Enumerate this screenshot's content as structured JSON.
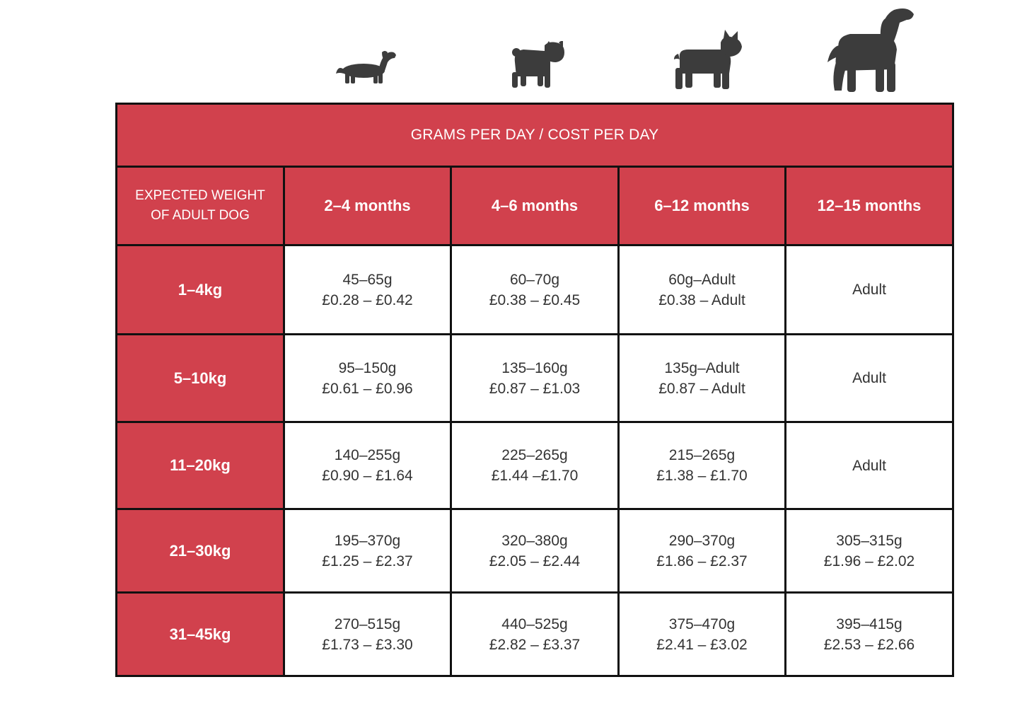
{
  "table_title": "GRAMS PER DAY / COST PER DAY",
  "weight_header": [
    "EXPECTED WEIGHT",
    "OF ADULT DOG"
  ],
  "age_columns": [
    "2–4 months",
    "4–6 months",
    "6–12 months",
    "12–15 months"
  ],
  "rows": [
    {
      "weight": "1–4kg",
      "cells": [
        [
          "45–65g",
          "£0.28 – £0.42"
        ],
        [
          "60–70g",
          "£0.38 – £0.45"
        ],
        [
          "60g–Adult",
          "£0.38 – Adult"
        ],
        [
          "Adult"
        ]
      ]
    },
    {
      "weight": "5–10kg",
      "cells": [
        [
          "95–150g",
          "£0.61 – £0.96"
        ],
        [
          "135–160g",
          "£0.87 – £1.03"
        ],
        [
          "135g–Adult",
          "£0.87 – Adult"
        ],
        [
          "Adult"
        ]
      ]
    },
    {
      "weight": "11–20kg",
      "cells": [
        [
          "140–255g",
          "£0.90 – £1.64"
        ],
        [
          "225–265g",
          "£1.44 –£1.70"
        ],
        [
          "215–265g",
          "£1.38 – £1.70"
        ],
        [
          "Adult"
        ]
      ]
    },
    {
      "weight": "21–30kg",
      "cells": [
        [
          "195–370g",
          "£1.25 – £2.37"
        ],
        [
          "320–380g",
          "£2.05 – £2.44"
        ],
        [
          "290–370g",
          "£1.86 – £2.37"
        ],
        [
          "305–315g",
          "£1.96 – £2.02"
        ]
      ]
    },
    {
      "weight": "31–45kg",
      "cells": [
        [
          "270–515g",
          "£1.73 – £3.30"
        ],
        [
          "440–525g",
          "£2.82 – £3.37"
        ],
        [
          "375–470g",
          "£2.41 – £3.02"
        ],
        [
          "395–415g",
          "£2.53 – £2.66"
        ]
      ]
    }
  ],
  "dog_icons": [
    "dachshund-icon",
    "pug-icon",
    "french-bulldog-icon",
    "spaniel-icon"
  ],
  "colors": {
    "header_red": "#d1414d",
    "border": "#111111",
    "dog_silhouette": "#3c3c3c"
  }
}
